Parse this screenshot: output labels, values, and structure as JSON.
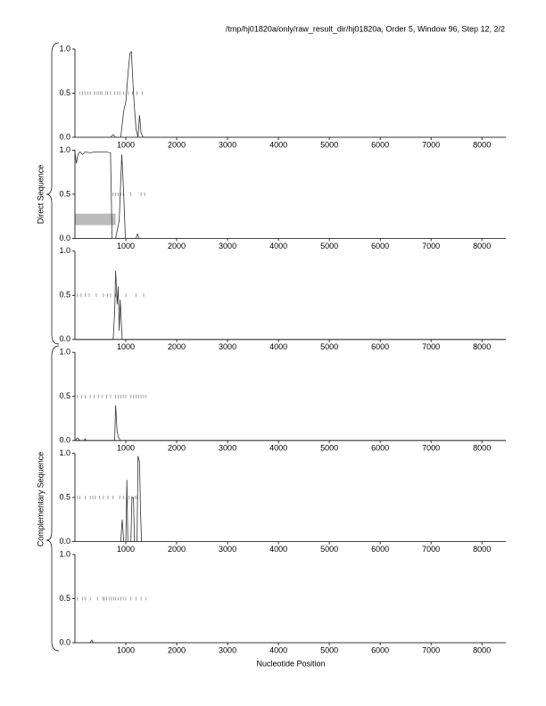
{
  "title": "/tmp/hj01820a/only/raw_result_dir/hj01820a, Order 5, Window 96, Step 12, 2/2",
  "xlabel": "Nucleotide Position",
  "group_labels": [
    "Direct Sequence",
    "Complementary Sequence"
  ],
  "chart_data": [
    {
      "type": "line",
      "color": "#333333",
      "xlim": [
        0,
        8470
      ],
      "ylim": [
        0,
        1
      ],
      "xticks": [
        1000,
        2000,
        3000,
        4000,
        5000,
        6000,
        7000,
        8000
      ],
      "yticks": [
        {
          "value": 0,
          "label": "0.0"
        },
        0.5,
        {
          "value": 1,
          "label": "1.0"
        }
      ],
      "x": [
        0,
        700,
        750,
        800,
        900,
        960,
        1000,
        1040,
        1080,
        1110,
        1150,
        1200,
        1240,
        1270,
        1300,
        1340,
        8470
      ],
      "values": [
        0,
        0,
        0.03,
        0,
        0,
        0.3,
        0.4,
        0.7,
        0.95,
        0.97,
        0.5,
        0.1,
        0,
        0.25,
        0.05,
        0,
        0
      ],
      "markers": [
        100,
        150,
        200,
        250,
        300,
        380,
        420,
        460,
        500,
        530,
        600,
        640,
        700,
        780,
        830,
        880,
        960,
        1050,
        1130,
        1220,
        1320
      ]
    },
    {
      "type": "line",
      "color": "#333333",
      "xlim": [
        0,
        8470
      ],
      "ylim": [
        0,
        1
      ],
      "xticks": [
        1000,
        2000,
        3000,
        4000,
        5000,
        6000,
        7000,
        8000
      ],
      "yticks": [
        {
          "value": 0,
          "label": "0.0"
        },
        0.5,
        {
          "value": 1,
          "label": "1.0"
        }
      ],
      "x": [
        0,
        30,
        60,
        100,
        150,
        200,
        300,
        400,
        600,
        700,
        730,
        800,
        870,
        920,
        960,
        990,
        1200,
        1230,
        1260,
        8470
      ],
      "values": [
        0.98,
        0.85,
        0.95,
        0.98,
        0.95,
        0.98,
        0.97,
        0.98,
        0.98,
        0.97,
        0,
        0,
        0.2,
        0.95,
        0.5,
        0,
        0,
        0.05,
        0,
        0
      ],
      "markers": [
        750,
        800,
        850,
        900,
        950,
        1100,
        1300,
        1370
      ],
      "region": {
        "x": [
          0,
          800
        ],
        "y": [
          0.15,
          0.28
        ]
      }
    },
    {
      "type": "line",
      "color": "#333333",
      "xlim": [
        0,
        8470
      ],
      "ylim": [
        0,
        1
      ],
      "xticks": [
        1000,
        2000,
        3000,
        4000,
        5000,
        6000,
        7000,
        8000
      ],
      "yticks": [
        {
          "value": 0,
          "label": "0.0"
        },
        0.5,
        {
          "value": 1,
          "label": "1.0"
        }
      ],
      "x": [
        0,
        750,
        780,
        800,
        830,
        850,
        870,
        890,
        910,
        930,
        8470
      ],
      "values": [
        0,
        0,
        0.3,
        0.78,
        0.4,
        0.6,
        0.1,
        0.45,
        0.2,
        0,
        0
      ],
      "markers": [
        50,
        120,
        200,
        280,
        420,
        560,
        640,
        700,
        800,
        850,
        1000,
        1200,
        1350
      ]
    },
    {
      "type": "line",
      "color": "#333333",
      "xlim": [
        0,
        8470
      ],
      "ylim": [
        0,
        1
      ],
      "xticks": [
        1000,
        2000,
        3000,
        4000,
        5000,
        6000,
        7000,
        8000
      ],
      "yticks": [
        {
          "value": 0,
          "label": "0.0"
        },
        0.5,
        {
          "value": 1,
          "label": "1.0"
        }
      ],
      "x": [
        0,
        50,
        100,
        180,
        200,
        220,
        780,
        800,
        830,
        860,
        900,
        8470
      ],
      "values": [
        0,
        0.03,
        0,
        0,
        0.02,
        0,
        0,
        0.4,
        0.1,
        0.03,
        0,
        0
      ],
      "markers": [
        50,
        130,
        200,
        300,
        380,
        460,
        540,
        620,
        700,
        800,
        850,
        900,
        950,
        1000,
        1100,
        1150,
        1200,
        1250,
        1300,
        1350,
        1400
      ]
    },
    {
      "type": "line",
      "color": "#333333",
      "xlim": [
        0,
        8470
      ],
      "ylim": [
        0,
        1
      ],
      "xticks": [
        1000,
        2000,
        3000,
        4000,
        5000,
        6000,
        7000,
        8000
      ],
      "yticks": [
        {
          "value": 0,
          "label": "0.0"
        },
        0.5,
        {
          "value": 1,
          "label": "1.0"
        }
      ],
      "x": [
        0,
        900,
        930,
        960,
        1000,
        1020,
        1040,
        1100,
        1120,
        1150,
        1170,
        1220,
        1240,
        1270,
        1290,
        1310,
        8470
      ],
      "values": [
        0,
        0,
        0.25,
        0,
        0,
        0.7,
        0,
        0,
        0.5,
        0.5,
        0,
        0,
        0.97,
        0.9,
        0.3,
        0,
        0
      ],
      "markers": [
        50,
        100,
        200,
        300,
        350,
        400,
        480,
        560,
        650,
        750,
        880,
        960,
        1060,
        1120,
        1180,
        1220
      ]
    },
    {
      "type": "line",
      "color": "#333333",
      "xlim": [
        0,
        8470
      ],
      "ylim": [
        0,
        1
      ],
      "xticks": [
        1000,
        2000,
        3000,
        4000,
        5000,
        6000,
        7000,
        8000
      ],
      "yticks": [
        {
          "value": 0,
          "label": "0.0"
        },
        0.5,
        {
          "value": 1,
          "label": "1.0"
        }
      ],
      "x": [
        0,
        300,
        330,
        360,
        8470
      ],
      "values": [
        0,
        0,
        0.03,
        0,
        0
      ],
      "markers": [
        50,
        150,
        200,
        300,
        450,
        550,
        580,
        620,
        680,
        720,
        760,
        800,
        850,
        900,
        950,
        1000,
        1100,
        1200,
        1300,
        1400
      ]
    }
  ]
}
